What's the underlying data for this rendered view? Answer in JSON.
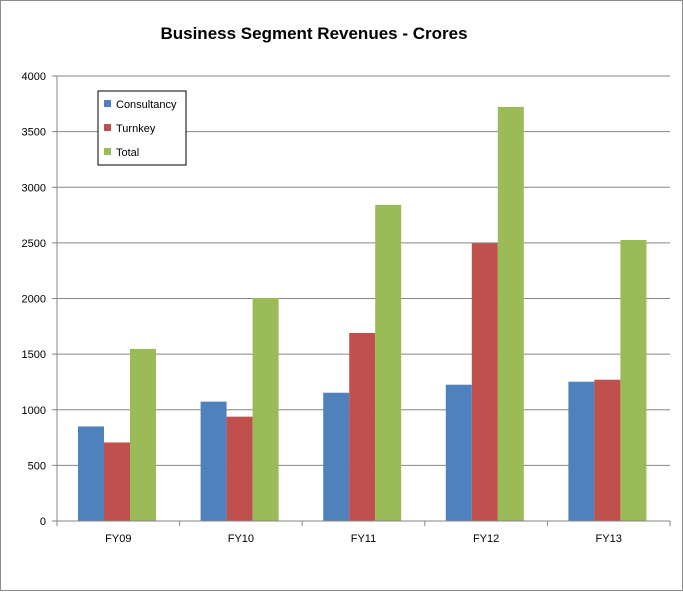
{
  "chart_data": {
    "type": "bar",
    "title": "Business Segment Revenues - Crores",
    "xlabel": "",
    "ylabel": "",
    "categories": [
      "FY09",
      "FY10",
      "FY11",
      "FY12",
      "FY13"
    ],
    "series": [
      {
        "name": "Consultancy",
        "color": "#4f81bd",
        "values": [
          850,
          1073,
          1153,
          1225,
          1252
        ]
      },
      {
        "name": "Turnkey",
        "color": "#c0504d",
        "values": [
          706,
          938,
          1690,
          2497,
          1270
        ]
      },
      {
        "name": "Total",
        "color": "#9bbb59",
        "values": [
          1547,
          2005,
          2842,
          3722,
          2526
        ]
      }
    ],
    "ylim": [
      0,
      4000
    ],
    "yticks": [
      "0",
      "500",
      "1000",
      "1500",
      "2000",
      "2500",
      "3000",
      "3500",
      "4000"
    ],
    "grid": true,
    "legend": "top-left"
  }
}
